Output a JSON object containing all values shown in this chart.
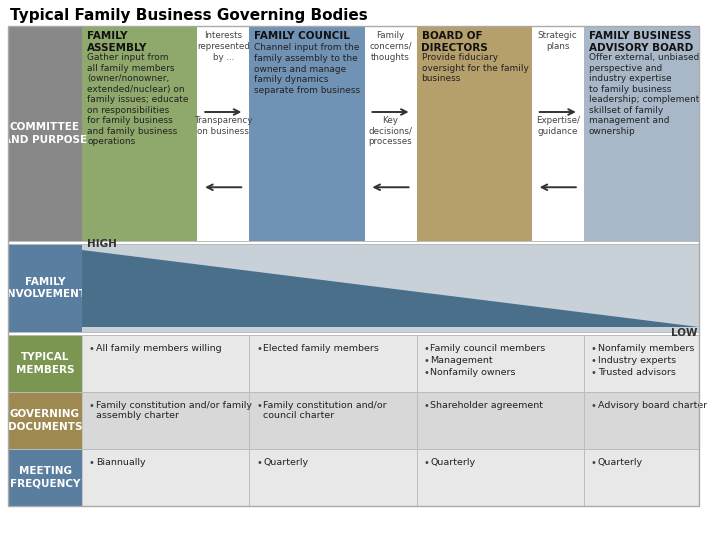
{
  "title": "Typical Family Business Governing Bodies",
  "title_fontsize": 11,
  "title_fontweight": "bold",
  "body_colors": [
    "#8fa86b",
    "#7092b4",
    "#b5a06b",
    "#a8b8c8"
  ],
  "body_titles": [
    "FAMILY\nASSEMBLY",
    "FAMILY COUNCIL",
    "BOARD OF\nDIRECTORS",
    "FAMILY BUSINESS\nADVISORY BOARD"
  ],
  "body_texts": [
    "Gather input from\nall family members\n(owner/nonowner,\nextended/nuclear) on\nfamily issues; educate\non responsibilities\nfor family business\nand family business\noperations",
    "Channel input from the\nfamily assembly to the\nowners and manage\nfamily dynamics\nseparate from business",
    "Provide fiduciary\noversight for the family\nbusiness",
    "Offer external, unbiased\nperspective and\nindustry expertise\nto family business\nleadership; complement\nskillset of family\nmanagement and\nownership"
  ],
  "connector_top": [
    "Interests\nrepresented\nby ...",
    "Family\nconcerns/\nthoughts",
    "Strategic\nplans"
  ],
  "connector_bot": [
    "Transparency\non business",
    "Key\ndecisions/\nprocesses",
    "Expertise/\nguidance"
  ],
  "label_bg_gray": "#888888",
  "label_bg_green": "#7a9650",
  "label_bg_tan": "#9e8a50",
  "label_bg_blue": "#5a7ea0",
  "involvement_bg": "#c8d0d8",
  "triangle_color": "#4a6f8a",
  "bottom_bg_light": "#e8e8e8",
  "bottom_bg_dark": "#d8d8d8",
  "row_label_bgs": [
    "#7a9650",
    "#9e8a50",
    "#5a7ea0"
  ],
  "typical_members": [
    [
      "All family members willing"
    ],
    [
      "Elected family members"
    ],
    [
      "Family council members",
      "Management",
      "Nonfamily owners"
    ],
    [
      "Nonfamily members",
      "Industry experts",
      "Trusted advisors"
    ]
  ],
  "governing_documents": [
    [
      "Family constitution and/or family\nassembly charter"
    ],
    [
      "Family constitution and/or\ncouncil charter"
    ],
    [
      "Shareholder agreement"
    ],
    [
      "Advisory board charter"
    ]
  ],
  "meeting_frequency": [
    [
      "Biannually"
    ],
    [
      "Quarterly"
    ],
    [
      "Quarterly"
    ],
    [
      "Quarterly"
    ]
  ],
  "bottom_row_labels": [
    "TYPICAL\nMEMBERS",
    "GOVERNING\nDOCUMENTS",
    "MEETING\nFREQUENCY"
  ]
}
